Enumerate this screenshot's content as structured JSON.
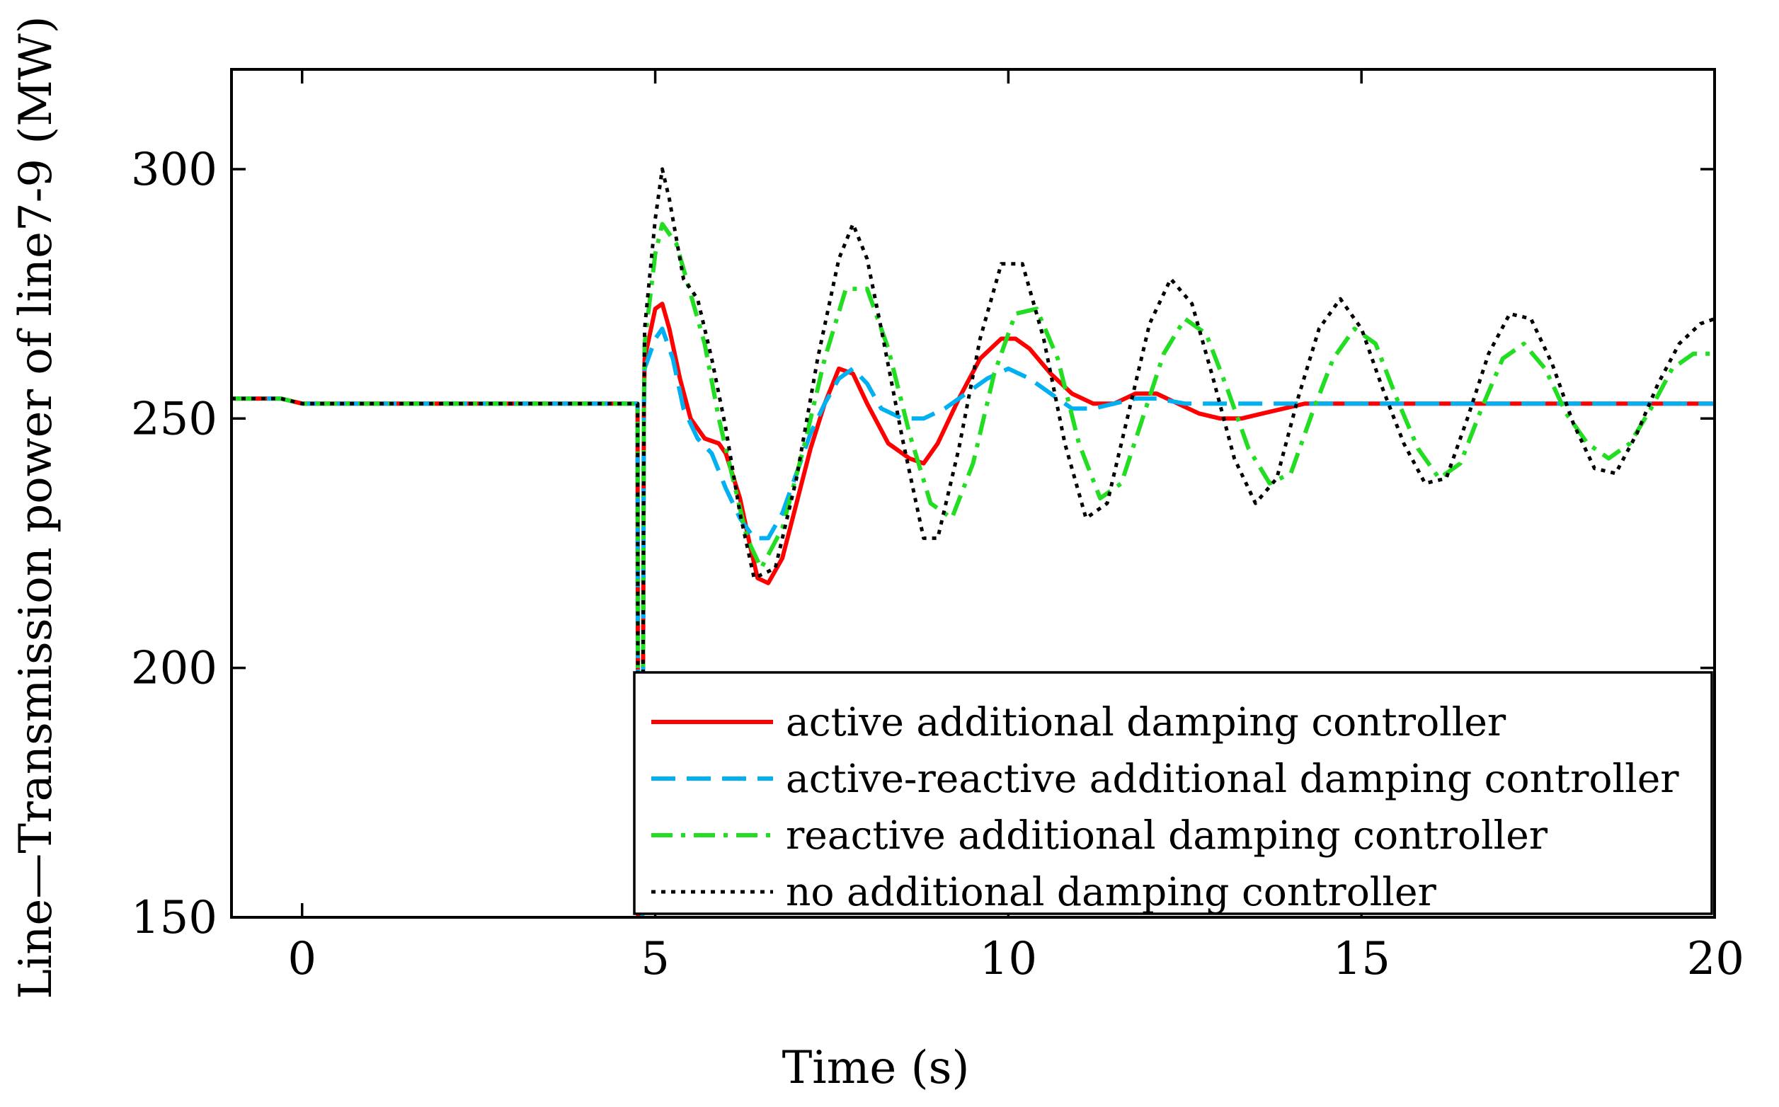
{
  "chart_data": {
    "type": "line",
    "title": "",
    "xlabel": "Time (s)",
    "ylabel": "Line—Transmission power of line7-9 (MW)",
    "xlim": [
      -1,
      20
    ],
    "ylim": [
      150,
      320
    ],
    "xticks": [
      0,
      5,
      10,
      15,
      20
    ],
    "yticks": [
      150,
      200,
      250,
      300
    ],
    "xtick_labels": [
      "0",
      "5",
      "10",
      "15",
      "20"
    ],
    "ytick_labels": [
      "150",
      "200",
      "250",
      "300"
    ],
    "grid": false,
    "legend_position": "bottom-right",
    "fault_time": 4.78,
    "series": [
      {
        "name": "active additional damping controller",
        "color": "#ff0000",
        "dash": "solid",
        "x": [
          -1,
          -0.7,
          -0.3,
          0,
          0.5,
          1,
          2,
          3,
          4,
          4.7,
          4.85,
          5.0,
          5.1,
          5.2,
          5.35,
          5.5,
          5.7,
          5.9,
          6.0,
          6.2,
          6.35,
          6.45,
          6.6,
          6.8,
          7.0,
          7.2,
          7.4,
          7.6,
          7.8,
          8.0,
          8.3,
          8.6,
          8.8,
          9.0,
          9.3,
          9.6,
          9.9,
          10.1,
          10.3,
          10.6,
          10.9,
          11.2,
          11.5,
          11.8,
          12.1,
          12.4,
          12.7,
          13.0,
          13.3,
          13.6,
          13.9,
          14.2,
          15,
          17,
          20
        ],
        "y": [
          254,
          254,
          254,
          253,
          253,
          253,
          253,
          253,
          253,
          253,
          262,
          272,
          273,
          268,
          258,
          250,
          246,
          245,
          243,
          234,
          224,
          218,
          217,
          222,
          233,
          244,
          253,
          260,
          259,
          253,
          245,
          242,
          241,
          245,
          254,
          262,
          266,
          266,
          264,
          259,
          255,
          253,
          253,
          255,
          255,
          253,
          251,
          250,
          250,
          251,
          252,
          253,
          253,
          253,
          253
        ]
      },
      {
        "name": "active-reactive additional damping controller",
        "color": "#00b0f0",
        "dash": "dashed",
        "x": [
          -1,
          -0.7,
          -0.3,
          0,
          0.5,
          1,
          2,
          3,
          4,
          4.7,
          4.85,
          5.0,
          5.1,
          5.25,
          5.4,
          5.6,
          5.8,
          6.0,
          6.2,
          6.4,
          6.6,
          6.8,
          7.0,
          7.2,
          7.4,
          7.6,
          7.8,
          8.0,
          8.2,
          8.5,
          8.8,
          9.1,
          9.4,
          9.7,
          10.0,
          10.3,
          10.6,
          10.9,
          11.2,
          11.5,
          11.8,
          12.1,
          12.5,
          13.0,
          14,
          16,
          20
        ],
        "y": [
          254,
          254,
          254,
          253,
          253,
          253,
          253,
          253,
          253,
          253,
          260,
          266,
          268,
          262,
          252,
          246,
          243,
          236,
          230,
          226,
          226,
          231,
          239,
          247,
          253,
          258,
          260,
          257,
          252,
          250,
          250,
          252,
          255,
          258,
          260,
          258,
          255,
          252,
          252,
          253,
          254,
          254,
          253,
          253,
          253,
          253,
          253
        ]
      },
      {
        "name": "reactive additional damping controller",
        "color": "#22dd22",
        "dash": "dashdot",
        "x": [
          -1,
          -0.7,
          -0.3,
          0,
          0.5,
          1,
          2,
          3,
          4,
          4.7,
          4.85,
          5.0,
          5.1,
          5.3,
          5.5,
          5.7,
          5.9,
          6.1,
          6.3,
          6.5,
          6.8,
          7.1,
          7.4,
          7.7,
          8.0,
          8.3,
          8.6,
          8.9,
          9.2,
          9.5,
          9.8,
          10.1,
          10.4,
          10.7,
          11.0,
          11.3,
          11.6,
          11.9,
          12.2,
          12.5,
          12.8,
          13.1,
          13.4,
          13.7,
          14.0,
          14.3,
          14.6,
          14.9,
          15.2,
          15.5,
          15.8,
          16.1,
          16.4,
          16.7,
          17.0,
          17.3,
          17.6,
          17.9,
          18.2,
          18.5,
          18.8,
          19.1,
          19.4,
          19.7,
          20
        ],
        "y": [
          254,
          254,
          254,
          253,
          253,
          253,
          253,
          253,
          253,
          253,
          265,
          283,
          289,
          285,
          275,
          265,
          250,
          238,
          226,
          220,
          228,
          244,
          262,
          276,
          276,
          264,
          247,
          233,
          230,
          241,
          259,
          271,
          272,
          262,
          245,
          234,
          237,
          250,
          263,
          270,
          267,
          256,
          244,
          237,
          239,
          251,
          262,
          268,
          265,
          254,
          244,
          238,
          241,
          252,
          262,
          265,
          260,
          251,
          245,
          242,
          245,
          252,
          260,
          263,
          263
        ]
      },
      {
        "name": "no additional damping controller",
        "color": "#000000",
        "dash": "dotted",
        "x": [
          -1,
          -0.7,
          -0.3,
          0,
          0.5,
          1,
          2,
          3,
          4,
          4.7,
          4.85,
          5.0,
          5.1,
          5.2,
          5.4,
          5.6,
          5.8,
          6.0,
          6.2,
          6.4,
          6.7,
          7.0,
          7.3,
          7.6,
          7.8,
          8.0,
          8.2,
          8.5,
          8.8,
          9.0,
          9.3,
          9.6,
          9.9,
          10.2,
          10.5,
          10.8,
          11.1,
          11.4,
          11.7,
          12.0,
          12.3,
          12.6,
          12.9,
          13.2,
          13.5,
          13.8,
          14.1,
          14.4,
          14.7,
          15.0,
          15.3,
          15.6,
          15.9,
          16.2,
          16.5,
          16.8,
          17.1,
          17.4,
          17.7,
          18.0,
          18.3,
          18.6,
          18.9,
          19.2,
          19.5,
          19.8,
          20
        ],
        "y": [
          254,
          254,
          254,
          253,
          253,
          253,
          253,
          253,
          253,
          253,
          268,
          290,
          300,
          294,
          278,
          274,
          262,
          248,
          231,
          218,
          220,
          238,
          262,
          282,
          289,
          282,
          268,
          246,
          226,
          226,
          244,
          266,
          281,
          281,
          266,
          245,
          230,
          233,
          251,
          269,
          278,
          273,
          258,
          242,
          233,
          238,
          254,
          268,
          274,
          268,
          256,
          245,
          237,
          238,
          250,
          263,
          271,
          270,
          261,
          249,
          240,
          239,
          247,
          257,
          265,
          269,
          270
        ]
      }
    ]
  }
}
